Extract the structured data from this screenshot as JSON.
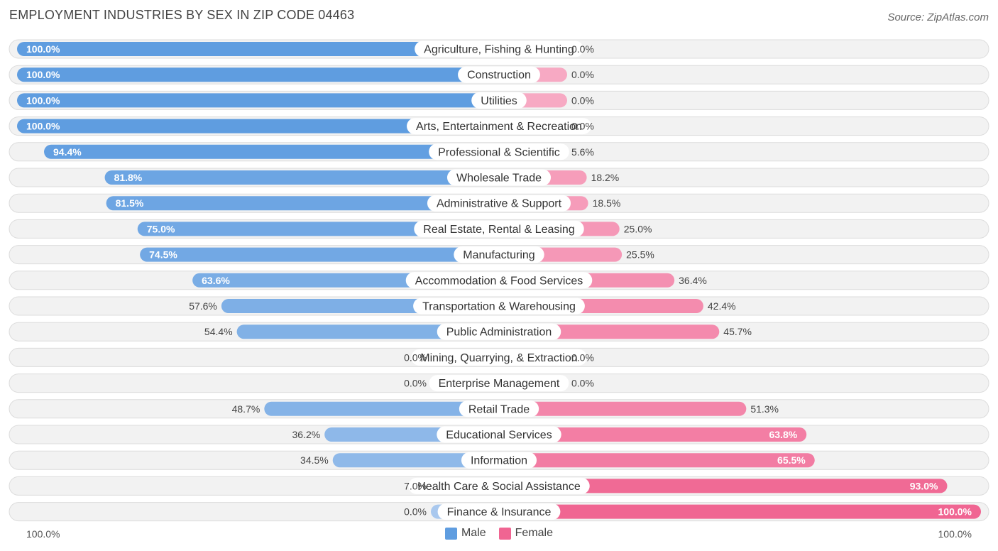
{
  "header": {
    "title": "EMPLOYMENT INDUSTRIES BY SEX IN ZIP CODE 04463",
    "source": "Source: ZipAtlas.com"
  },
  "legend": {
    "male_label": "Male",
    "female_label": "Female"
  },
  "axis": {
    "left_label": "100.0%",
    "right_label": "100.0%"
  },
  "colors": {
    "male_strong": "#5f9de0",
    "male_light": "#a9c8ee",
    "female_strong": "#f06592",
    "female_light": "#f7a9c3",
    "row_bg": "#f2f2f2",
    "row_border": "#dcdcdc"
  },
  "chart_data": {
    "type": "bar",
    "orientation": "horizontal-diverging",
    "title": "EMPLOYMENT INDUSTRIES BY SEX IN ZIP CODE 04463",
    "xlim": [
      0,
      100
    ],
    "legend_position": "bottom-center",
    "categories": [
      "Agriculture, Fishing & Hunting",
      "Construction",
      "Utilities",
      "Arts, Entertainment & Recreation",
      "Professional & Scientific",
      "Wholesale Trade",
      "Administrative & Support",
      "Real Estate, Rental & Leasing",
      "Manufacturing",
      "Accommodation & Food Services",
      "Transportation & Warehousing",
      "Public Administration",
      "Mining, Quarrying, & Extraction",
      "Enterprise Management",
      "Retail Trade",
      "Educational Services",
      "Information",
      "Health Care & Social Assistance",
      "Finance & Insurance"
    ],
    "series": [
      {
        "name": "Male",
        "values": [
          100.0,
          100.0,
          100.0,
          100.0,
          94.4,
          81.8,
          81.5,
          75.0,
          74.5,
          63.6,
          57.6,
          54.4,
          0.0,
          0.0,
          48.7,
          36.2,
          34.5,
          7.0,
          0.0
        ],
        "labels": [
          "100.0%",
          "100.0%",
          "100.0%",
          "100.0%",
          "94.4%",
          "81.8%",
          "81.5%",
          "75.0%",
          "74.5%",
          "63.6%",
          "57.6%",
          "54.4%",
          "0.0%",
          "0.0%",
          "48.7%",
          "36.2%",
          "34.5%",
          "7.0%",
          "0.0%"
        ]
      },
      {
        "name": "Female",
        "values": [
          0.0,
          0.0,
          0.0,
          0.0,
          5.6,
          18.2,
          18.5,
          25.0,
          25.5,
          36.4,
          42.4,
          45.7,
          0.0,
          0.0,
          51.3,
          63.8,
          65.5,
          93.0,
          100.0
        ],
        "labels": [
          "0.0%",
          "0.0%",
          "0.0%",
          "0.0%",
          "5.6%",
          "18.2%",
          "18.5%",
          "25.0%",
          "25.5%",
          "36.4%",
          "42.4%",
          "45.7%",
          "0.0%",
          "0.0%",
          "51.3%",
          "63.8%",
          "65.5%",
          "93.0%",
          "100.0%"
        ]
      }
    ]
  }
}
